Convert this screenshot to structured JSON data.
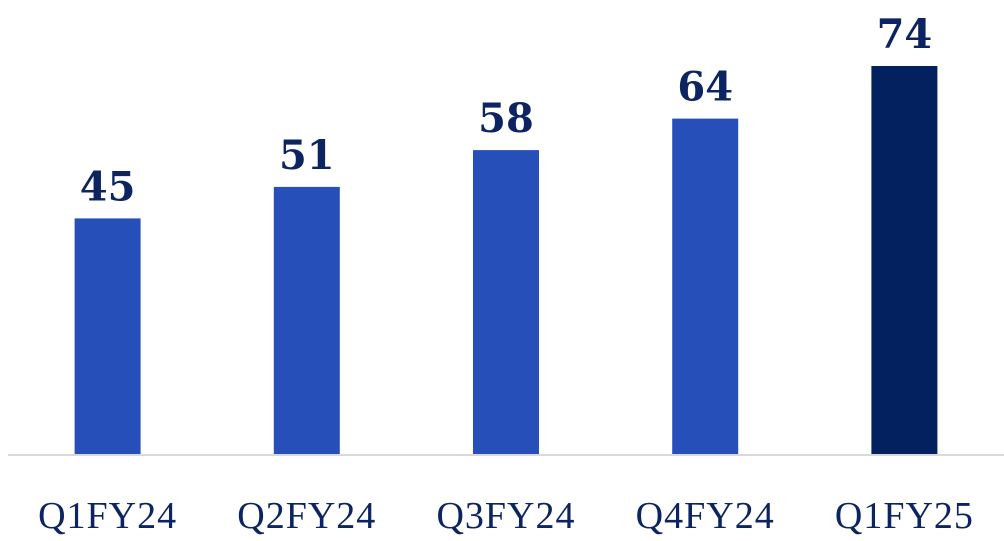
{
  "chart_data": {
    "type": "bar",
    "title": "",
    "xlabel": "",
    "ylabel": "",
    "categories": [
      "Q1FY24",
      "Q2FY24",
      "Q3FY24",
      "Q4FY24",
      "Q1FY25"
    ],
    "values": [
      45,
      51,
      58,
      64,
      74
    ],
    "data_labels": [
      "45",
      "51",
      "58",
      "64",
      "74"
    ],
    "ylim": [
      0,
      74
    ],
    "grid": false,
    "legend": "none",
    "colors": {
      "bar": "#264fba",
      "highlight_bar": "#03205f",
      "value_label": "#0c2461",
      "tick_label": "#0c2461",
      "baseline": "#d9d9d9"
    },
    "highlight_index": 4
  }
}
